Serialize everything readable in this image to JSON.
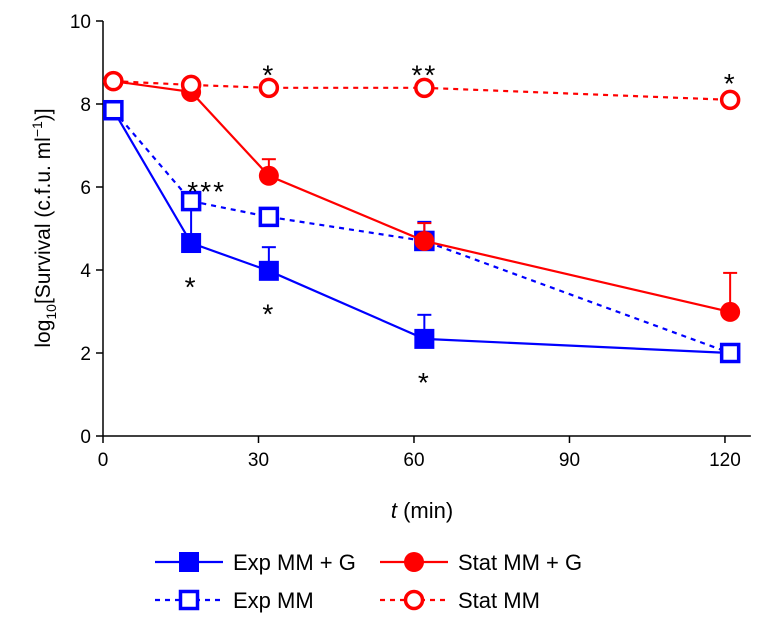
{
  "chart_data": {
    "type": "line",
    "title": "",
    "xlabel_italic": "t",
    "xlabel_rest": " (min)",
    "ylabel_prefix": "log",
    "ylabel_sub": "10",
    "ylabel_main": "[Survival (c.f.u. ml",
    "ylabel_sup": "−1",
    "ylabel_end": ")]",
    "xlim": [
      0,
      125
    ],
    "ylim": [
      0,
      10
    ],
    "xticks": [
      0,
      30,
      60,
      90,
      120
    ],
    "yticks": [
      0,
      2,
      4,
      6,
      8,
      10
    ],
    "grid": false,
    "legend_placement": "bottom",
    "series": [
      {
        "name": "Exp MM + G",
        "color": "#0000ff",
        "marker": "filled-square",
        "line": "solid",
        "x": [
          2,
          17,
          32,
          62,
          121
        ],
        "y": [
          7.85,
          4.65,
          3.98,
          2.34,
          2.0
        ],
        "err_upper": [
          null,
          5.69,
          4.55,
          2.92,
          null
        ]
      },
      {
        "name": "Exp MM",
        "color": "#0000ff",
        "marker": "open-square",
        "line": "dotted",
        "x": [
          2,
          17,
          32,
          62,
          121
        ],
        "y": [
          7.85,
          5.66,
          5.28,
          4.7,
          2.0
        ],
        "err_upper": [
          null,
          5.72,
          5.33,
          5.16,
          null
        ]
      },
      {
        "name": "Stat MM + G",
        "color": "#ff0000",
        "marker": "filled-circle",
        "line": "solid",
        "x": [
          2,
          17,
          32,
          62,
          121
        ],
        "y": [
          8.55,
          8.29,
          6.27,
          4.7,
          2.99
        ],
        "err_upper": [
          null,
          null,
          6.67,
          5.13,
          3.93
        ]
      },
      {
        "name": "Stat MM",
        "color": "#ff0000",
        "marker": "open-circle",
        "line": "dotted",
        "x": [
          2,
          17,
          32,
          62,
          121
        ],
        "y": [
          8.55,
          8.46,
          8.39,
          8.39,
          8.1
        ],
        "err_upper": [
          null,
          null,
          null,
          null,
          null
        ]
      }
    ],
    "annotations": [
      {
        "text": "*",
        "x": 32,
        "y": 8.9
      },
      {
        "text": "**",
        "x": 62,
        "y": 8.9
      },
      {
        "text": "*",
        "x": 121,
        "y": 8.7
      },
      {
        "text": "***",
        "x": 20,
        "y": 6.1
      },
      {
        "text": "*",
        "x": 17,
        "y": 3.8
      },
      {
        "text": "*",
        "x": 32,
        "y": 3.15
      },
      {
        "text": "*",
        "x": 62,
        "y": 1.5
      }
    ]
  }
}
